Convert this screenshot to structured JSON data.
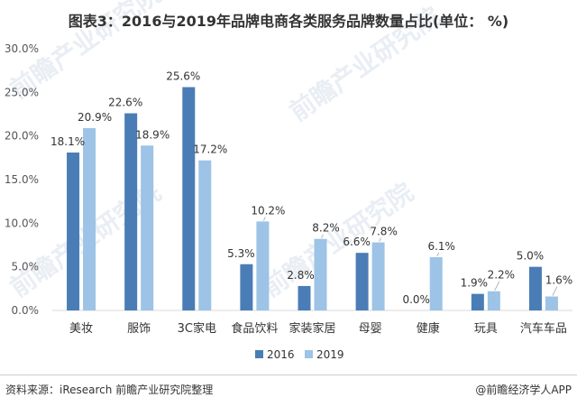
{
  "title": "图表3：2016与2019年品牌电商各类服务品牌数量占比(单位： %)",
  "source": "资料来源：iResearch 前瞻产业研究院整理",
  "credit": "@前瞻经济学人APP",
  "watermark": "前瞻产业研究院",
  "colors": {
    "s2016": "#4a7db5",
    "s2019": "#9dc3e6"
  },
  "chart_data": {
    "type": "bar",
    "categories": [
      "美妆",
      "服饰",
      "3C家电",
      "食品饮料",
      "家装家居",
      "母婴",
      "健康",
      "玩具",
      "汽车车品"
    ],
    "series": [
      {
        "name": "2016",
        "values": [
          18.1,
          22.6,
          25.6,
          5.3,
          2.8,
          6.6,
          0.0,
          1.9,
          5.0
        ],
        "labels": [
          "18.1%",
          "22.6%",
          "25.6%",
          "5.3%",
          "2.8%",
          "6.6%",
          "0.0%",
          "1.9%",
          "5.0%"
        ]
      },
      {
        "name": "2019",
        "values": [
          20.9,
          18.9,
          17.2,
          10.2,
          8.2,
          7.8,
          6.1,
          2.2,
          1.6
        ],
        "labels": [
          "20.9%",
          "18.9%",
          "17.2%",
          "10.2%",
          "8.2%",
          "7.8%",
          "6.1%",
          "2.2%",
          "1.6%"
        ]
      }
    ],
    "ylim": [
      0,
      30
    ],
    "yticks": [
      "0.0%",
      "5.0%",
      "10.0%",
      "15.0%",
      "20.0%",
      "25.0%",
      "30.0%"
    ],
    "grid": false,
    "legend_position": "bottom-center"
  }
}
